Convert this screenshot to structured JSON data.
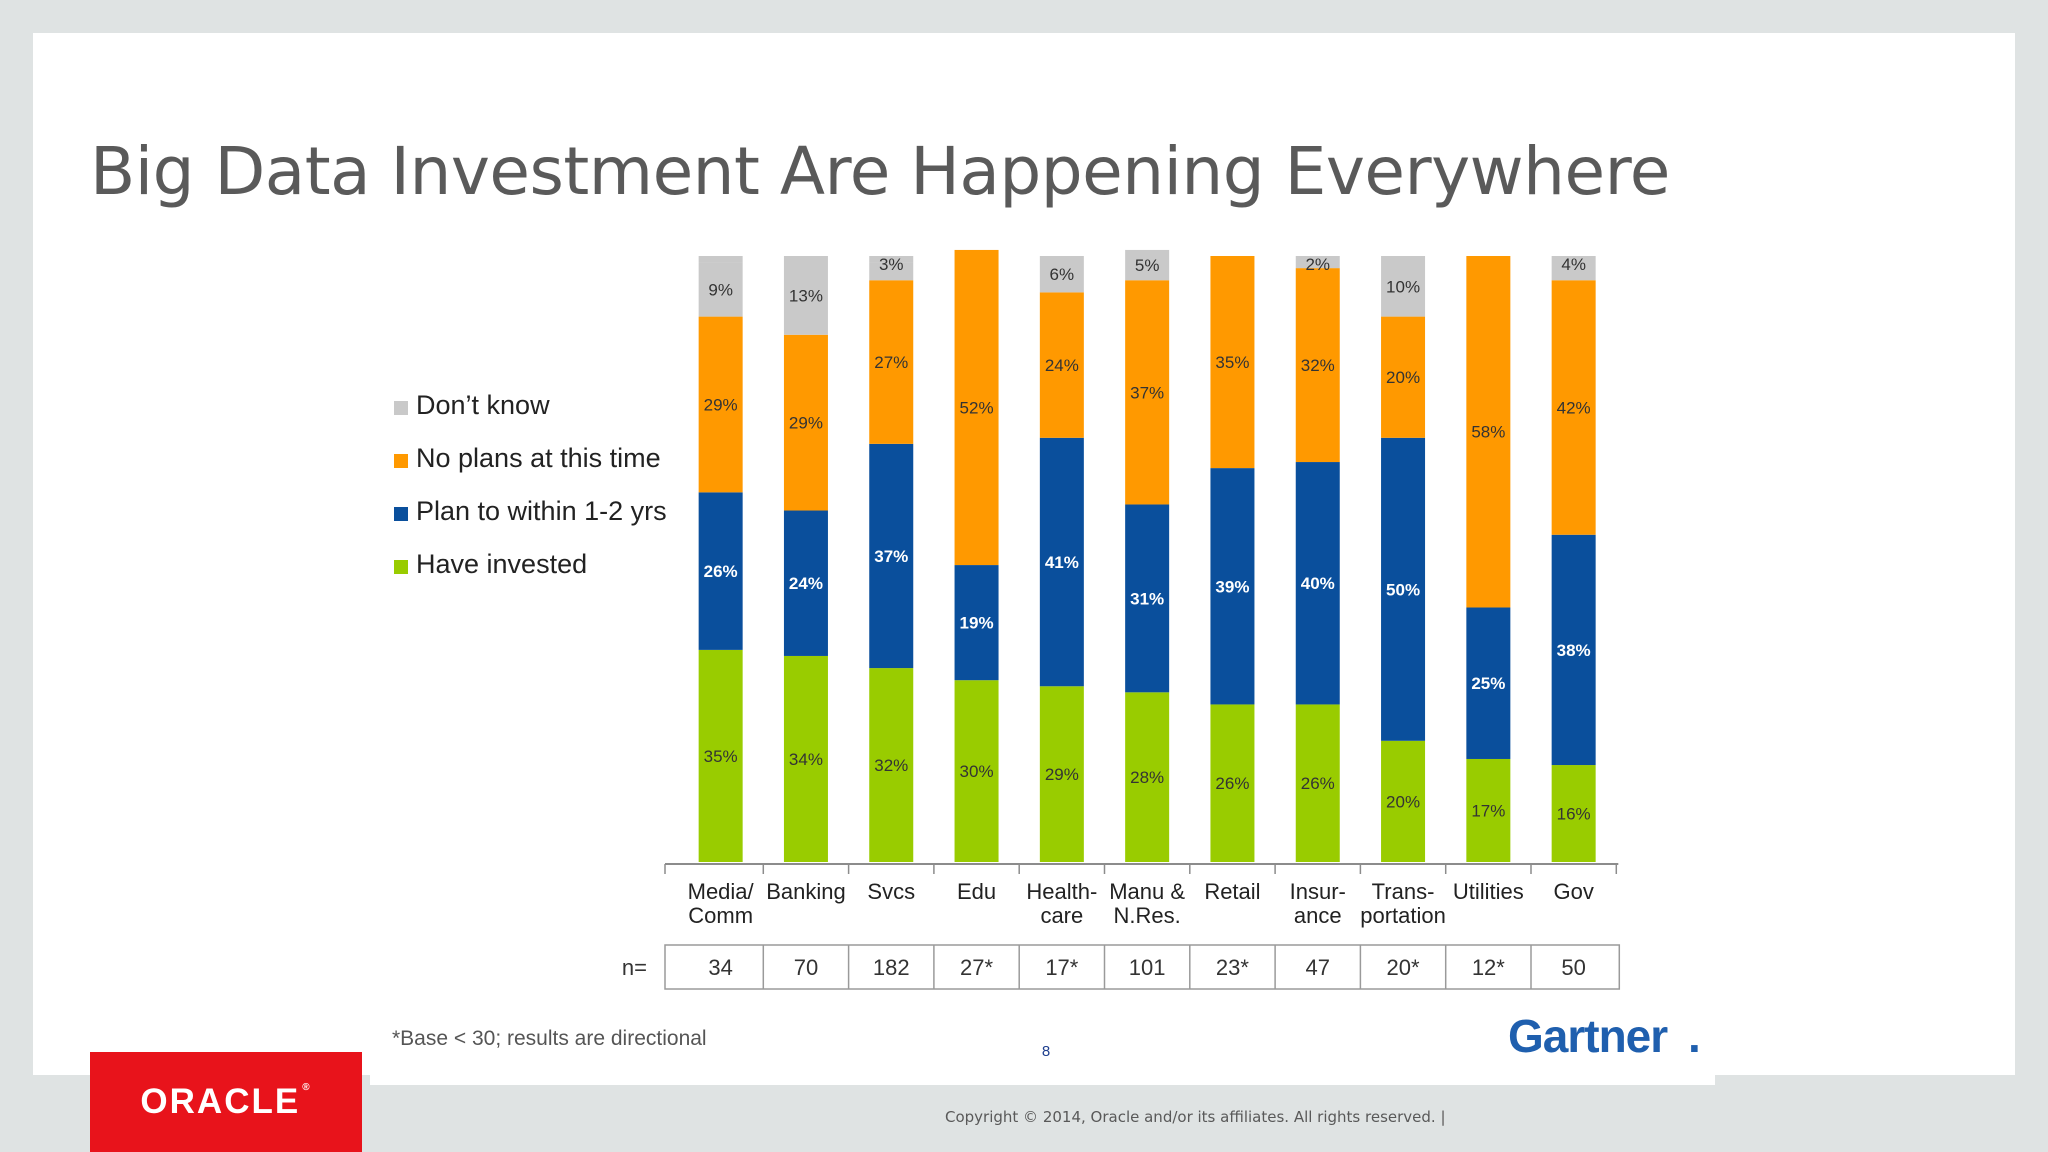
{
  "slide": {
    "title": "Big Data Investment Are Happening Everywhere",
    "logo": "ORACLE",
    "logo_mark": "®",
    "copyright": "Copyright © 2014, Oracle and/or its affiliates. All rights reserved.  |"
  },
  "chart_data": {
    "type": "bar",
    "stacked": true,
    "percent": true,
    "categories": [
      [
        "Media/",
        "Comm"
      ],
      [
        "Banking"
      ],
      [
        "Svcs"
      ],
      [
        "Edu"
      ],
      [
        "Health-",
        "care"
      ],
      [
        "Manu &",
        "N.Res."
      ],
      [
        "Retail"
      ],
      [
        "Insur-",
        "ance"
      ],
      [
        "Trans-",
        "portation"
      ],
      [
        "Utilities"
      ],
      [
        "Gov"
      ]
    ],
    "series": [
      {
        "name": "Have invested",
        "color": "#99cc00",
        "values": [
          35,
          34,
          32,
          30,
          29,
          28,
          26,
          26,
          20,
          17,
          16
        ]
      },
      {
        "name": "Plan to within 1-2 yrs",
        "color": "#0a4f9c",
        "values": [
          26,
          24,
          37,
          19,
          41,
          31,
          39,
          40,
          50,
          25,
          38
        ]
      },
      {
        "name": "No plans at this time",
        "color": "#ff9900",
        "values": [
          29,
          29,
          27,
          52,
          24,
          37,
          35,
          32,
          20,
          58,
          42
        ]
      },
      {
        "name": "Don’t know",
        "color": "#c9c9c9",
        "values": [
          9,
          13,
          3,
          null,
          6,
          5,
          null,
          2,
          10,
          null,
          4
        ]
      }
    ],
    "legend_order": [
      "Don’t know",
      "No plans at this time",
      "Plan to within 1-2 yrs",
      "Have invested"
    ],
    "legend_position": "left",
    "sample_label": "n=",
    "sample_sizes": [
      "34",
      "70",
      "182",
      "27*",
      "17*",
      "101",
      "23*",
      "47",
      "20*",
      "12*",
      "50"
    ],
    "footnote": "*Base < 30; results are directional",
    "page_number": "8",
    "source_logo": "Gartner",
    "source_logo_mark": "."
  }
}
